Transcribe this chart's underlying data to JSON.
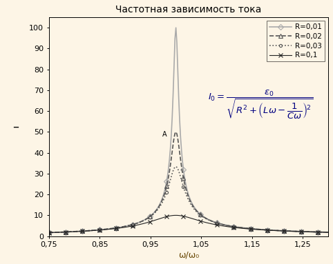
{
  "title": "Частотная зависимость тока",
  "xlabel": "ω/ω₀",
  "background_color": "#fdf5e6",
  "xlim": [
    0.75,
    1.3
  ],
  "ylim": [
    0,
    105
  ],
  "yticks": [
    0,
    10,
    20,
    30,
    40,
    50,
    60,
    70,
    80,
    90,
    100
  ],
  "xticks": [
    0.75,
    0.85,
    0.95,
    1.05,
    1.15,
    1.25
  ],
  "xticklabels": [
    "0,75",
    "0,85",
    "0,95",
    "1,05",
    "1,15",
    "1,25"
  ],
  "series": [
    {
      "R": 0.01,
      "label": "R=0,01",
      "linestyle": "-",
      "marker": "D",
      "color": "#aaaaaa",
      "linewidth": 1.2,
      "markersize": 4
    },
    {
      "R": 0.02,
      "label": "R=0,02",
      "linestyle": "--",
      "marker": "^",
      "color": "#555555",
      "linewidth": 1.2,
      "markersize": 4
    },
    {
      "R": 0.03,
      "label": "R=0,03",
      "linestyle": ":",
      "marker": "o",
      "color": "#555555",
      "linewidth": 1.2,
      "markersize": 3
    },
    {
      "R": 0.1,
      "label": "R=0,1",
      "linestyle": "-",
      "marker": "x",
      "color": "#222222",
      "linewidth": 0.8,
      "markersize": 4
    }
  ],
  "epsilon0": 1.0,
  "L": 1.0,
  "C": 1.0,
  "n_points": 300,
  "markevery": 18
}
